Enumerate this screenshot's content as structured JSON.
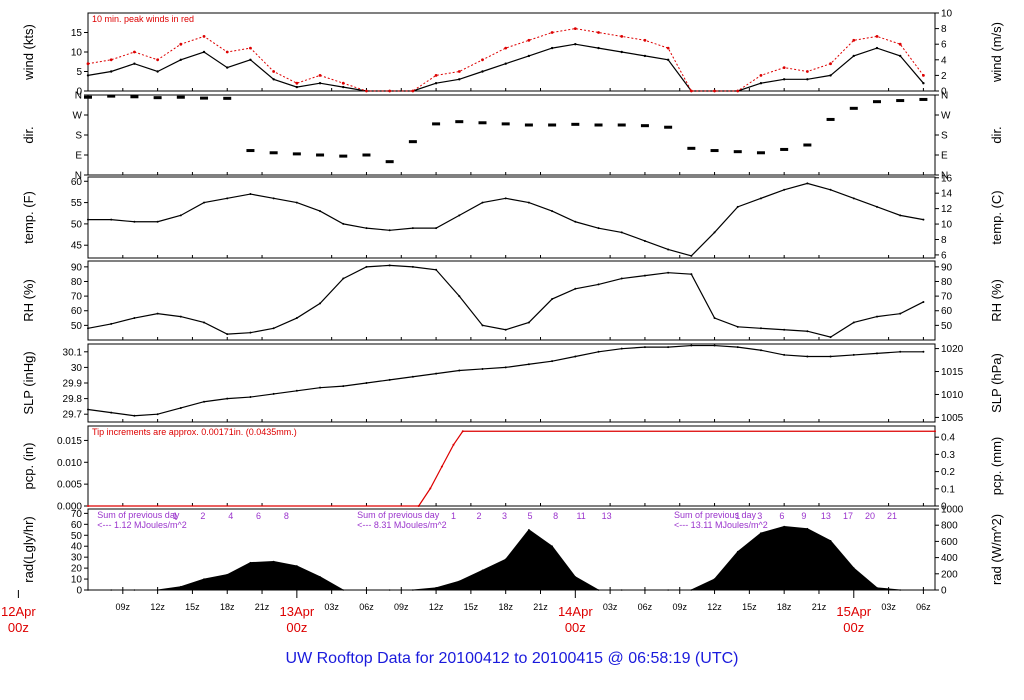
{
  "footer": {
    "text": "UW Rooftop Data for 20100412  to  20100415 @ 06:58:19  (UTC)",
    "color": "#1a1adc"
  },
  "colors": {
    "trace": "#000000",
    "peak": "#dd0000",
    "annotation": "#dd0000",
    "summary": "#9a33cc",
    "hour_label": "#9a33cc",
    "day_label": "#dd0000"
  },
  "chart_data": [
    {
      "type": "line",
      "id": "wind",
      "ylabel": "wind (kts)",
      "y2label": "wind (m/s)",
      "annotation": "10 min. peak winds in red",
      "ylim": [
        0,
        20
      ],
      "yticks": [
        0,
        5,
        10,
        15
      ],
      "y2lim": [
        0,
        10
      ],
      "y2ticks": [
        0,
        2,
        4,
        6,
        8,
        10
      ],
      "x_hours": [
        6,
        8,
        10,
        12,
        14,
        16,
        18,
        20,
        22,
        24,
        26,
        28,
        30,
        32,
        34,
        36,
        38,
        40,
        42,
        44,
        46,
        48,
        50,
        52,
        54,
        56,
        58,
        60,
        62,
        64,
        66,
        68,
        70,
        72,
        74,
        76,
        78
      ],
      "series": [
        {
          "values": [
            4,
            5,
            7,
            5,
            8,
            10,
            6,
            8,
            3,
            1,
            2,
            1,
            0,
            0,
            0,
            2,
            3,
            5,
            7,
            9,
            11,
            12,
            11,
            10,
            9,
            8,
            0,
            0,
            0,
            2,
            3,
            3,
            4,
            9,
            11,
            9,
            2
          ]
        },
        {
          "values": [
            7,
            8,
            10,
            8,
            12,
            14,
            10,
            11,
            5,
            2,
            4,
            2,
            0,
            0,
            0,
            4,
            5,
            8,
            11,
            13,
            15,
            16,
            15,
            14,
            13,
            11,
            0,
            0,
            0,
            4,
            6,
            5,
            7,
            13,
            14,
            12,
            4
          ]
        }
      ]
    },
    {
      "type": "scatter",
      "id": "dir",
      "ylabel": "dir.",
      "y2label": "dir.",
      "ylim": [
        0,
        360
      ],
      "ytick_values": [
        0,
        90,
        180,
        270,
        360
      ],
      "ytick_labels": [
        "N",
        "E",
        "S",
        "W",
        "N"
      ],
      "x_hours": [
        6,
        8,
        10,
        12,
        14,
        16,
        18,
        20,
        22,
        24,
        26,
        28,
        30,
        32,
        34,
        36,
        38,
        40,
        42,
        44,
        46,
        48,
        50,
        52,
        54,
        56,
        58,
        60,
        62,
        64,
        66,
        68,
        70,
        72,
        74,
        76,
        78
      ],
      "values": [
        350,
        355,
        352,
        348,
        350,
        346,
        345,
        110,
        100,
        95,
        90,
        85,
        90,
        60,
        150,
        230,
        240,
        235,
        230,
        225,
        225,
        228,
        225,
        225,
        222,
        215,
        120,
        110,
        105,
        100,
        115,
        135,
        250,
        300,
        330,
        335,
        340
      ]
    },
    {
      "type": "line",
      "id": "temp",
      "ylabel": "temp. (F)",
      "y2label": "temp. (C)",
      "ylim": [
        42,
        61
      ],
      "yticks": [
        45,
        50,
        55,
        60
      ],
      "y2lim": [
        5.6,
        16.1
      ],
      "y2ticks": [
        6,
        8,
        10,
        12,
        14,
        16
      ],
      "x_hours": [
        6,
        8,
        10,
        12,
        14,
        16,
        18,
        20,
        22,
        24,
        26,
        28,
        30,
        32,
        34,
        36,
        38,
        40,
        42,
        44,
        46,
        48,
        50,
        52,
        54,
        56,
        58,
        60,
        62,
        64,
        66,
        68,
        70,
        72,
        74,
        76,
        78
      ],
      "values": [
        51,
        51,
        50.5,
        50.5,
        52,
        55,
        56,
        57,
        56,
        55,
        53,
        50,
        49,
        48.5,
        49,
        49,
        52,
        55,
        56,
        55,
        53,
        50.5,
        49,
        48,
        46,
        44,
        42.5,
        48,
        54,
        56,
        58,
        59.5,
        58,
        56,
        54,
        52,
        51
      ]
    },
    {
      "type": "line",
      "id": "rh",
      "ylabel": "RH (%)",
      "y2label": "RH (%)",
      "ylim": [
        40,
        94
      ],
      "yticks": [
        50,
        60,
        70,
        80,
        90
      ],
      "x_hours": [
        6,
        8,
        10,
        12,
        14,
        16,
        18,
        20,
        22,
        24,
        26,
        28,
        30,
        32,
        34,
        36,
        38,
        40,
        42,
        44,
        46,
        48,
        50,
        52,
        54,
        56,
        58,
        60,
        62,
        64,
        66,
        68,
        70,
        72,
        74,
        76,
        78
      ],
      "values": [
        48,
        51,
        55,
        58,
        56,
        52,
        44,
        45,
        48,
        55,
        65,
        82,
        90,
        91,
        90,
        88,
        70,
        50,
        47,
        52,
        68,
        75,
        78,
        82,
        84,
        86,
        85,
        55,
        49,
        48,
        47,
        46,
        42,
        52,
        56,
        58,
        66
      ]
    },
    {
      "type": "line",
      "id": "slp",
      "ylabel": "SLP (inHg)",
      "y2label": "SLP (hPa)",
      "ylim": [
        29.65,
        30.15
      ],
      "yticks": [
        29.7,
        29.8,
        29.9,
        30.0,
        30.1
      ],
      "y2lim": [
        1004.0,
        1021.0
      ],
      "y2ticks": [
        1005,
        1010,
        1015,
        1020
      ],
      "x_hours": [
        6,
        8,
        10,
        12,
        14,
        16,
        18,
        20,
        22,
        24,
        26,
        28,
        30,
        32,
        34,
        36,
        38,
        40,
        42,
        44,
        46,
        48,
        50,
        52,
        54,
        56,
        58,
        60,
        62,
        64,
        66,
        68,
        70,
        72,
        74,
        76,
        78
      ],
      "values": [
        29.73,
        29.71,
        29.69,
        29.7,
        29.74,
        29.78,
        29.8,
        29.81,
        29.83,
        29.85,
        29.87,
        29.88,
        29.9,
        29.92,
        29.94,
        29.96,
        29.98,
        29.99,
        30.0,
        30.02,
        30.04,
        30.07,
        30.1,
        30.12,
        30.13,
        30.13,
        30.14,
        30.14,
        30.13,
        30.11,
        30.08,
        30.07,
        30.07,
        30.08,
        30.09,
        30.1,
        30.1
      ]
    },
    {
      "type": "line",
      "id": "pcp",
      "ylabel": "pcp. (in)",
      "y2label": "pcp. (mm)",
      "annotation": "Tip increments are approx. 0.00171in. (0.0435mm.)",
      "ylim": [
        0,
        0.0183
      ],
      "yticks": [
        0.0,
        0.005,
        0.01,
        0.015
      ],
      "ytick_labels": [
        "0.000",
        "0.005",
        "0.010",
        "0.015"
      ],
      "y2lim": [
        0,
        0.465
      ],
      "y2ticks": [
        0,
        0.1,
        0.2,
        0.3,
        0.4
      ],
      "x_hours": [
        6,
        34.5,
        35.5,
        36.5,
        37.5,
        38.3,
        79
      ],
      "values": [
        0,
        0,
        0.004,
        0.009,
        0.014,
        0.0171,
        0.0171
      ]
    },
    {
      "type": "area",
      "id": "rad",
      "ylabel": "rad(Lgly/hr)",
      "y2label": "rad (W/m^2)",
      "ylim": [
        0,
        74
      ],
      "yticks": [
        0,
        10,
        20,
        30,
        40,
        50,
        60,
        70
      ],
      "y2lim": [
        0,
        1000
      ],
      "y2ticks": [
        0,
        200,
        400,
        600,
        800,
        1000
      ],
      "x_hours": [
        6,
        8,
        10,
        12,
        14,
        16,
        18,
        20,
        22,
        24,
        26,
        28,
        30,
        32,
        34,
        36,
        38,
        40,
        42,
        44,
        46,
        48,
        50,
        52,
        54,
        56,
        58,
        60,
        62,
        64,
        66,
        68,
        70,
        72,
        74,
        76,
        78
      ],
      "values": [
        0,
        0,
        0,
        0,
        3,
        10,
        14,
        25,
        26,
        22,
        12,
        0,
        0,
        0,
        0,
        2,
        8,
        18,
        28,
        55,
        40,
        12,
        0,
        0,
        0,
        0,
        0,
        10,
        35,
        52,
        58,
        56,
        45,
        20,
        2,
        0,
        0
      ],
      "summaries": [
        {
          "line1": "Sum of previous day",
          "line2": "<--- 1.12 MJoules/m^2"
        },
        {
          "line1": "Sum of previous day",
          "line2": "<--- 8.31 MJoules/m^2"
        },
        {
          "line1": "Sum of previous day",
          "line2": "<--- 13.11 MJoules/m^2"
        }
      ],
      "hour_labels": [
        [
          "1",
          "2",
          "4",
          "6",
          "8"
        ],
        [
          "1",
          "2",
          "3",
          "5",
          "8",
          "11",
          "13"
        ],
        [
          "1",
          "3",
          "6",
          "9",
          "13",
          "17",
          "20",
          "21"
        ]
      ]
    }
  ],
  "x_axis": {
    "hour_ticks": [
      {
        "hour": 9,
        "label": "09z"
      },
      {
        "hour": 12,
        "label": "12z"
      },
      {
        "hour": 15,
        "label": "15z"
      },
      {
        "hour": 18,
        "label": "18z"
      },
      {
        "hour": 21,
        "label": "21z"
      },
      {
        "hour": 27,
        "label": "03z"
      },
      {
        "hour": 30,
        "label": "06z"
      },
      {
        "hour": 33,
        "label": "09z"
      },
      {
        "hour": 36,
        "label": "12z"
      },
      {
        "hour": 39,
        "label": "15z"
      },
      {
        "hour": 42,
        "label": "18z"
      },
      {
        "hour": 45,
        "label": "21z"
      },
      {
        "hour": 51,
        "label": "03z"
      },
      {
        "hour": 54,
        "label": "06z"
      },
      {
        "hour": 57,
        "label": "09z"
      },
      {
        "hour": 60,
        "label": "12z"
      },
      {
        "hour": 63,
        "label": "15z"
      },
      {
        "hour": 66,
        "label": "18z"
      },
      {
        "hour": 69,
        "label": "21z"
      },
      {
        "hour": 75,
        "label": "03z"
      },
      {
        "hour": 78,
        "label": "06z"
      }
    ],
    "day_ticks": [
      {
        "hour": 0,
        "date": "12Apr",
        "time": "00z"
      },
      {
        "hour": 24,
        "date": "13Apr",
        "time": "00z"
      },
      {
        "hour": 48,
        "date": "14Apr",
        "time": "00z"
      },
      {
        "hour": 72,
        "date": "15Apr",
        "time": "00z"
      }
    ],
    "xlim": [
      6,
      79
    ]
  }
}
